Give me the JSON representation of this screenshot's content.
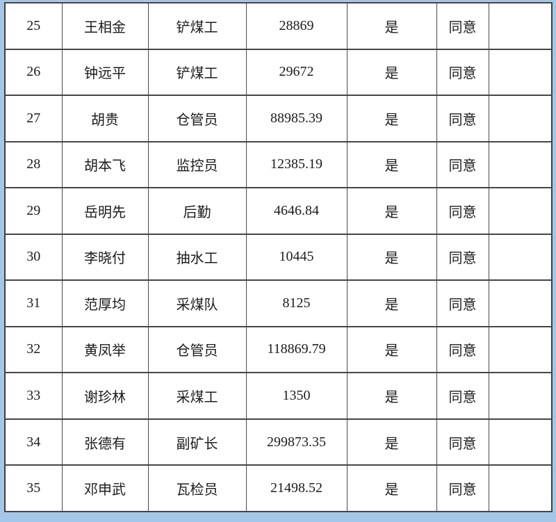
{
  "page": {
    "background_color": "#a5c7e7",
    "table_border_color": "#3d3d3d",
    "cell_background": "#ffffff"
  },
  "table": {
    "column_names": [
      "row-number",
      "name",
      "job-title",
      "amount",
      "confirmation",
      "approval",
      "remarks"
    ],
    "rows": [
      [
        "25",
        "王相金",
        "铲煤工",
        "28869",
        "是",
        "同意",
        ""
      ],
      [
        "26",
        "钟远平",
        "铲煤工",
        "29672",
        "是",
        "同意",
        ""
      ],
      [
        "27",
        "胡贵",
        "仓管员",
        "88985.39",
        "是",
        "同意",
        ""
      ],
      [
        "28",
        "胡本飞",
        "监控员",
        "12385.19",
        "是",
        "同意",
        ""
      ],
      [
        "29",
        "岳明先",
        "后勤",
        "4646.84",
        "是",
        "同意",
        ""
      ],
      [
        "30",
        "李晓付",
        "抽水工",
        "10445",
        "是",
        "同意",
        ""
      ],
      [
        "31",
        "范厚均",
        "采煤队",
        "8125",
        "是",
        "同意",
        ""
      ],
      [
        "32",
        "黄凤举",
        "仓管员",
        "118869.79",
        "是",
        "同意",
        ""
      ],
      [
        "33",
        "谢珍林",
        "采煤工",
        "1350",
        "是",
        "同意",
        ""
      ],
      [
        "34",
        "张德有",
        "副矿长",
        "299873.35",
        "是",
        "同意",
        ""
      ],
      [
        "35",
        "邓申武",
        "瓦检员",
        "21498.52",
        "是",
        "同意",
        ""
      ]
    ]
  }
}
